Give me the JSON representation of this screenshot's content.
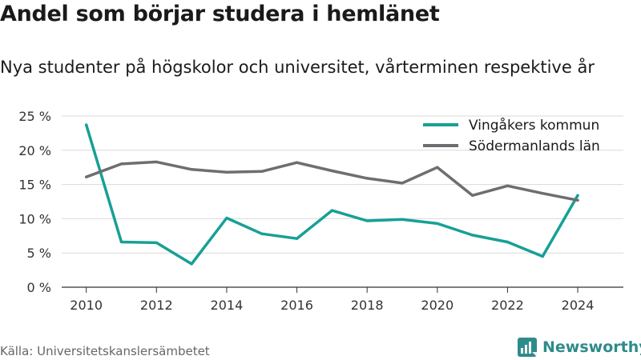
{
  "header": {
    "title": "Andel som börjar studera i hemlänet",
    "subtitle": "Nya studenter på högskolor och universitet, vårterminen respektive år"
  },
  "footer": {
    "source": "Källa: Universitetskanslersämbetet",
    "brand": "Newsworthy",
    "brand_icon": "newsworthy-logo-icon",
    "brand_color": "#2e8b8b"
  },
  "chart_data": {
    "type": "line",
    "title": "Andel som börjar studera i hemlänet",
    "subtitle": "Nya studenter på högskolor och universitet, vårterminen respektive år",
    "xlabel": "",
    "ylabel": "",
    "x": [
      2010,
      2011,
      2012,
      2013,
      2014,
      2015,
      2016,
      2017,
      2018,
      2019,
      2020,
      2021,
      2022,
      2023,
      2024
    ],
    "x_ticks": [
      2010,
      2012,
      2014,
      2016,
      2018,
      2020,
      2022,
      2024
    ],
    "y_ticks": [
      0,
      5,
      10,
      15,
      20,
      25
    ],
    "y_tick_labels": [
      "0 %",
      "5 %",
      "10 %",
      "15 %",
      "20 %",
      "25 %"
    ],
    "ylim": [
      0,
      25
    ],
    "xlim": [
      2009.3,
      2025.3
    ],
    "grid": "horizontal",
    "legend_position": "top-right",
    "series": [
      {
        "name": "Vingåkers kommun",
        "color": "#17a096",
        "values": [
          23.7,
          6.6,
          6.5,
          3.4,
          10.1,
          7.8,
          7.1,
          11.2,
          9.7,
          9.9,
          9.3,
          7.6,
          6.6,
          4.5,
          13.4
        ]
      },
      {
        "name": "Södermanlands län",
        "color": "#6e6e72",
        "values": [
          16.1,
          18.0,
          18.3,
          17.2,
          16.8,
          16.9,
          18.2,
          17.0,
          15.9,
          15.2,
          17.5,
          13.4,
          14.8,
          13.7,
          12.7
        ]
      }
    ]
  }
}
